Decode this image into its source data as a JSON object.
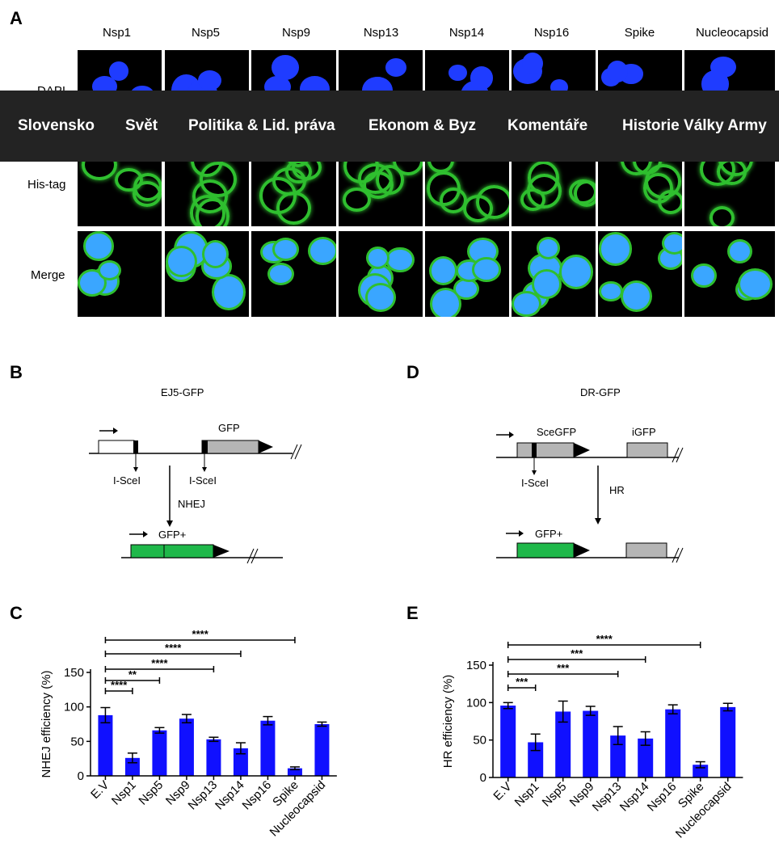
{
  "nav": {
    "items": [
      {
        "label": "Slovensko"
      },
      {
        "label": "Svět"
      },
      {
        "label": "Politika & Lid. práva"
      },
      {
        "label": "Ekonom & Byz"
      },
      {
        "label": "Komentáře"
      },
      {
        "label": "Historie Války Army"
      }
    ]
  },
  "panel_a": {
    "letter": "A",
    "columns": [
      "Nsp1",
      "Nsp5",
      "Nsp9",
      "Nsp13",
      "Nsp14",
      "Nsp16",
      "Spike",
      "Nucleocapsid"
    ],
    "rows": [
      "DAPI",
      "His-tag",
      "Merge"
    ],
    "colors": {
      "dapi": "#1f3cff",
      "his": "#2fbf2f",
      "merge_nucleus": "#3aa6ff"
    }
  },
  "panel_b": {
    "letter": "B",
    "title": "EJ5-GFP",
    "gfp_label": "GFP",
    "site1": "I-SceI",
    "site2": "I-SceI",
    "arrow_label": "NHEJ",
    "product_label": "GFP+"
  },
  "panel_d": {
    "letter": "D",
    "title": "DR-GFP",
    "sce_label": "SceGFP",
    "igfp_label": "iGFP",
    "site": "I-SceI",
    "arrow_label": "HR",
    "product_label": "GFP+"
  },
  "colors": {
    "bar": "#1010ff",
    "gfp_green": "#1fb84a",
    "box_gray": "#b5b5b5"
  },
  "chart_data": [
    {
      "panel": "C",
      "type": "bar",
      "categories": [
        "E.V",
        "Nsp1",
        "Nsp5",
        "Nsp9",
        "Nsp13",
        "Nsp14",
        "Nsp16",
        "Spike",
        "Nucleocapsid"
      ],
      "values": [
        88,
        26,
        66,
        83,
        53,
        40,
        80,
        11,
        75
      ],
      "errors": [
        11,
        7,
        4,
        6,
        3,
        8,
        6,
        2,
        3
      ],
      "ylabel": "NHEJ efficiency (%)",
      "ylim": [
        0,
        150
      ],
      "yticks": [
        0,
        50,
        100,
        150
      ],
      "significance": [
        {
          "from": "E.V",
          "to": "Nsp1",
          "label": "****"
        },
        {
          "from": "E.V",
          "to": "Nsp5",
          "label": "**"
        },
        {
          "from": "E.V",
          "to": "Nsp13",
          "label": "****"
        },
        {
          "from": "E.V",
          "to": "Nsp14",
          "label": "****"
        },
        {
          "from": "E.V",
          "to": "Spike",
          "label": "****"
        }
      ]
    },
    {
      "panel": "E",
      "type": "bar",
      "categories": [
        "E.V",
        "Nsp1",
        "Nsp5",
        "Nsp9",
        "Nsp13",
        "Nsp14",
        "Nsp16",
        "Spike",
        "Nucleocapsid"
      ],
      "values": [
        96,
        47,
        88,
        89,
        56,
        52,
        91,
        17,
        94
      ],
      "errors": [
        4,
        11,
        14,
        6,
        12,
        9,
        6,
        4,
        5
      ],
      "ylabel": "HR efficiency (%)",
      "ylim": [
        0,
        150
      ],
      "yticks": [
        0,
        50,
        100,
        150
      ],
      "significance": [
        {
          "from": "E.V",
          "to": "Nsp1",
          "label": "***"
        },
        {
          "from": "E.V",
          "to": "Nsp13",
          "label": "***"
        },
        {
          "from": "E.V",
          "to": "Nsp14",
          "label": "***"
        },
        {
          "from": "E.V",
          "to": "Spike",
          "label": "****"
        }
      ]
    }
  ]
}
